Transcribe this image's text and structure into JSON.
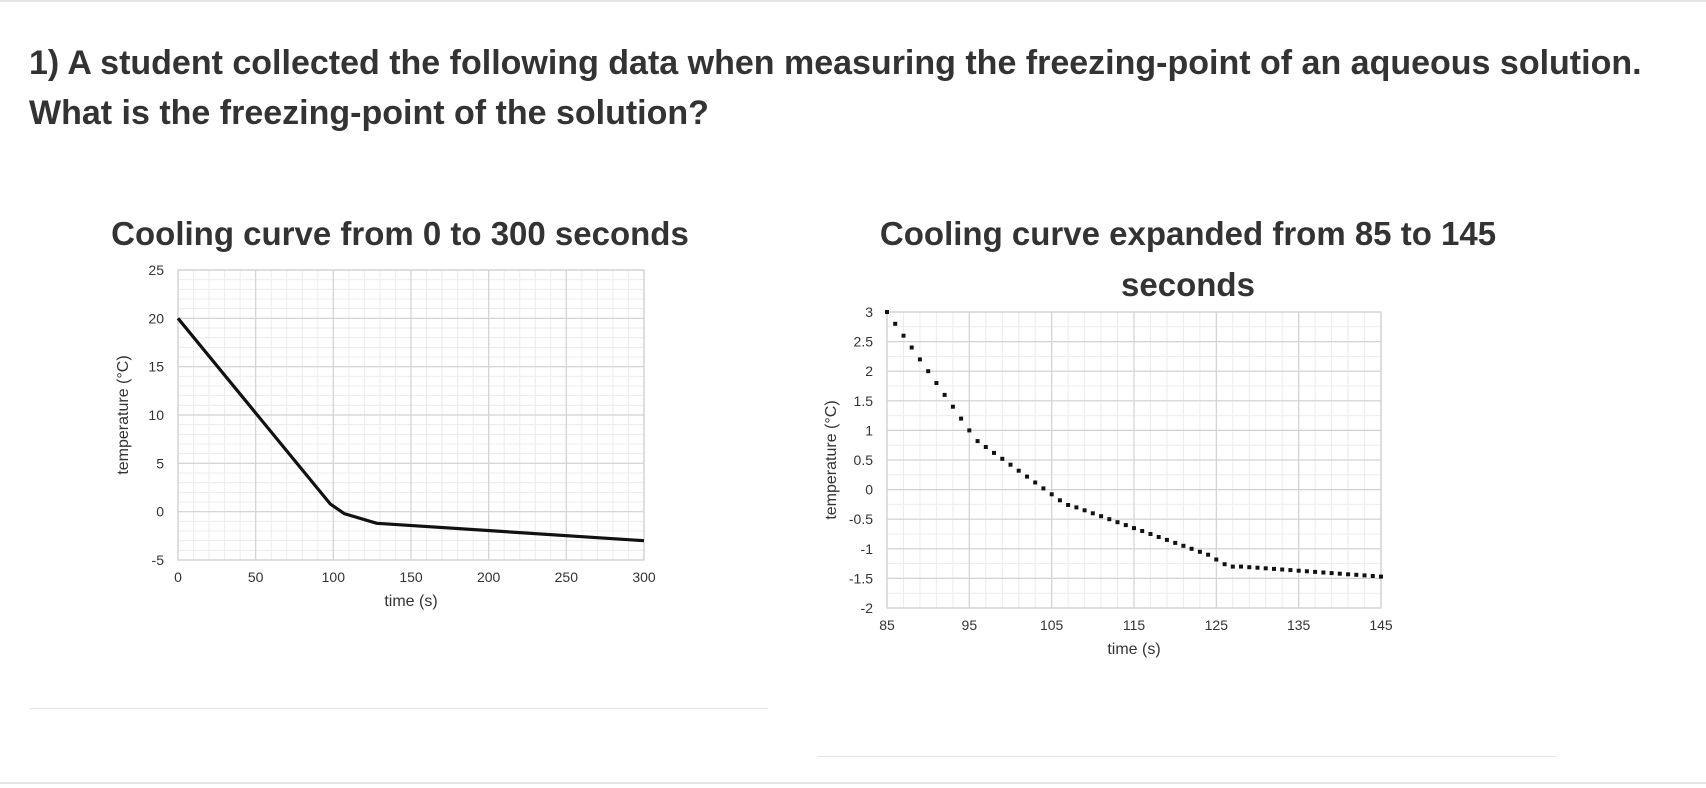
{
  "question": {
    "text": "1) A student collected the following data when measuring the freezing-point of an aqueous solution. What is the freezing-point of the solution?"
  },
  "chart_data": [
    {
      "type": "line",
      "title": "Cooling curve from 0 to 300 seconds",
      "xlabel": "time (s)",
      "ylabel": "temperature (°C)",
      "xlim": [
        0,
        300
      ],
      "ylim": [
        -5,
        25
      ],
      "xticks": [
        0,
        50,
        100,
        150,
        200,
        250,
        300
      ],
      "yticks": [
        -5,
        0,
        5,
        10,
        15,
        20,
        25
      ],
      "xtick_labels": [
        "0",
        "50",
        "100",
        "150",
        "200",
        "250",
        "300"
      ],
      "ytick_labels": [
        "-5",
        "0",
        "5",
        "10",
        "15",
        "20",
        "25"
      ],
      "grid": true,
      "line_color": "#111111",
      "x": [
        0,
        98,
        107,
        128,
        300
      ],
      "y": [
        20,
        0.8,
        -0.2,
        -1.2,
        -3
      ]
    },
    {
      "type": "scatter",
      "title": "Cooling curve expanded from 85 to 145 seconds",
      "xlabel": "time (s)",
      "ylabel": "temperature (°C)",
      "xlim": [
        85,
        145
      ],
      "ylim": [
        -2,
        3
      ],
      "xticks": [
        85,
        95,
        105,
        115,
        125,
        135,
        145
      ],
      "yticks": [
        -2,
        -1.5,
        -1,
        -0.5,
        0,
        0.5,
        1,
        1.5,
        2,
        2.5,
        3
      ],
      "xtick_labels": [
        "85",
        "95",
        "105",
        "115",
        "125",
        "135",
        "145"
      ],
      "ytick_labels": [
        "-2",
        "-1.5",
        "-1",
        "-0.5",
        "0",
        "0.5",
        "1",
        "1.5",
        "2",
        "2.5",
        "3"
      ],
      "grid": true,
      "marker_color": "#111111",
      "x": [
        85,
        86,
        87,
        88,
        89,
        90,
        91,
        92,
        93,
        94,
        95,
        96,
        97,
        98,
        99,
        100,
        101,
        102,
        103,
        104,
        105,
        106,
        107,
        108,
        109,
        110,
        111,
        112,
        113,
        114,
        115,
        116,
        117,
        118,
        119,
        120,
        121,
        122,
        123,
        124,
        125,
        126,
        127,
        128,
        129,
        130,
        131,
        132,
        133,
        134,
        135,
        136,
        137,
        138,
        139,
        140,
        141,
        142,
        143,
        144,
        145
      ],
      "y": [
        3.0,
        2.8,
        2.6,
        2.4,
        2.2,
        2.0,
        1.8,
        1.6,
        1.4,
        1.2,
        1.0,
        0.82,
        0.72,
        0.62,
        0.52,
        0.42,
        0.32,
        0.22,
        0.12,
        0.02,
        -0.08,
        -0.18,
        -0.26,
        -0.3,
        -0.35,
        -0.4,
        -0.45,
        -0.5,
        -0.55,
        -0.6,
        -0.65,
        -0.7,
        -0.75,
        -0.8,
        -0.85,
        -0.9,
        -0.95,
        -1.0,
        -1.05,
        -1.1,
        -1.18,
        -1.26,
        -1.3,
        -1.3,
        -1.31,
        -1.32,
        -1.33,
        -1.34,
        -1.35,
        -1.36,
        -1.37,
        -1.38,
        -1.39,
        -1.4,
        -1.41,
        -1.42,
        -1.43,
        -1.44,
        -1.45,
        -1.46,
        -1.47
      ]
    }
  ]
}
